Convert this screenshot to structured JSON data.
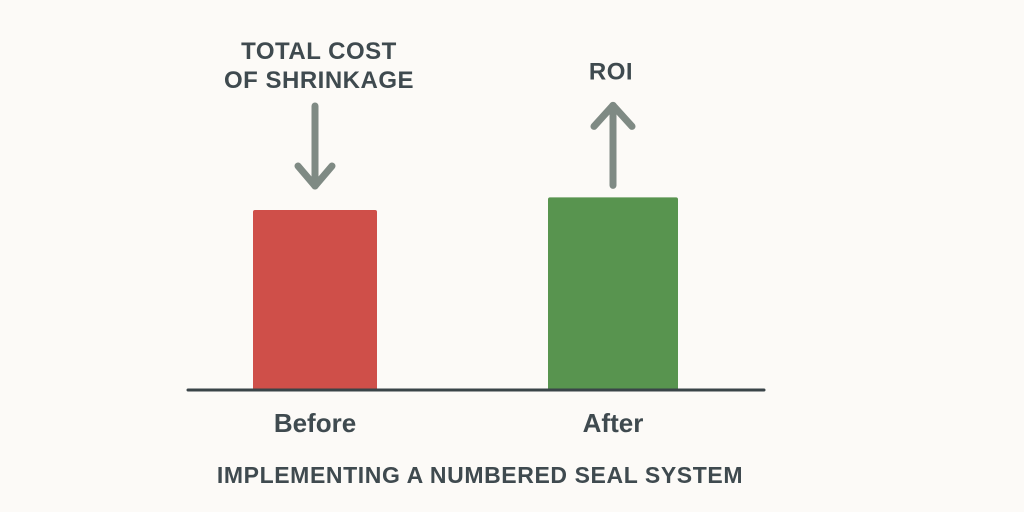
{
  "chart_data": {
    "type": "bar",
    "categories": [
      "Before",
      "After"
    ],
    "values": [
      100,
      107
    ],
    "colors": [
      "#cf4f49",
      "#58944f"
    ],
    "ylim": [
      0,
      110
    ],
    "grid": false,
    "legend": "none",
    "caption": "IMPLEMENTING A NUMBERED SEAL SYSTEM",
    "annotations": [
      {
        "target": "Before",
        "lines": [
          "TOTAL COST",
          "OF SHRINKAGE"
        ],
        "arrow": "down",
        "arrow_icon": "down-arrow-icon"
      },
      {
        "target": "After",
        "lines": [
          "ROI"
        ],
        "arrow": "up",
        "arrow_icon": "up-arrow-icon"
      }
    ]
  },
  "colors": {
    "background": "#fcfaf7",
    "axis": "#3a4448",
    "text": "#3f4a4f",
    "arrow": "#7f8a84"
  }
}
